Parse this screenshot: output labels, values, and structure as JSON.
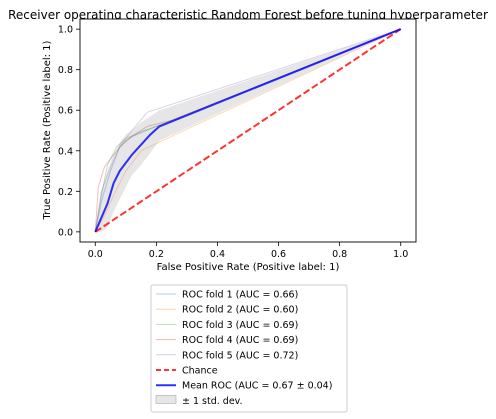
{
  "chart_data": {
    "type": "line",
    "title": "Receiver operating characteristic Random Forest before tuning hyperparameter",
    "xlabel": "False Positive Rate (Positive label: 1)",
    "ylabel": "True Positive Rate (Positive label: 1)",
    "xlim": [
      -0.05,
      1.05
    ],
    "ylim": [
      -0.05,
      1.05
    ],
    "xticks": [
      "0.0",
      "0.2",
      "0.4",
      "0.6",
      "0.8",
      "1.0"
    ],
    "yticks": [
      "0.0",
      "0.2",
      "0.4",
      "0.6",
      "0.8",
      "1.0"
    ],
    "legend_position": "below plot",
    "series": [
      {
        "name": "ROC fold 1 (AUC = 0.66)",
        "color": "#1f77b4",
        "x": [
          0,
          0.02,
          0.05,
          0.08,
          0.12,
          0.2,
          0.3,
          1.0
        ],
        "y": [
          0,
          0.15,
          0.3,
          0.42,
          0.47,
          0.52,
          0.58,
          1.0
        ]
      },
      {
        "name": "ROC fold 2 (AUC = 0.60)",
        "color": "#ff7f0e",
        "x": [
          0,
          0.03,
          0.06,
          0.1,
          0.15,
          0.22,
          1.0
        ],
        "y": [
          0,
          0.08,
          0.18,
          0.3,
          0.4,
          0.45,
          1.0
        ]
      },
      {
        "name": "ROC fold 3 (AUC = 0.69)",
        "color": "#2ca02c",
        "x": [
          0,
          0.02,
          0.04,
          0.07,
          0.1,
          0.16,
          0.22,
          1.0
        ],
        "y": [
          0,
          0.18,
          0.33,
          0.42,
          0.46,
          0.5,
          0.53,
          1.0
        ]
      },
      {
        "name": "ROC fold 4 (AUC = 0.69)",
        "color": "#d62728",
        "x": [
          0,
          0.01,
          0.03,
          0.06,
          0.1,
          0.17,
          0.25,
          1.0
        ],
        "y": [
          0,
          0.22,
          0.32,
          0.38,
          0.45,
          0.52,
          0.55,
          1.0
        ]
      },
      {
        "name": "ROC fold 5 (AUC = 0.72)",
        "color": "#9467bd",
        "x": [
          0,
          0.02,
          0.05,
          0.08,
          0.12,
          0.17,
          1.0
        ],
        "y": [
          0,
          0.2,
          0.32,
          0.42,
          0.5,
          0.59,
          1.0
        ]
      }
    ],
    "chance": {
      "name": "Chance",
      "color": "#ff0000",
      "x": [
        0,
        1
      ],
      "y": [
        0,
        1
      ]
    },
    "mean": {
      "name": "Mean ROC (AUC = 0.67 ± 0.04)",
      "color": "#0000ff",
      "x": [
        0,
        0.02,
        0.04,
        0.06,
        0.08,
        0.1,
        0.12,
        0.15,
        0.18,
        0.21,
        1.0
      ],
      "y": [
        0,
        0.07,
        0.14,
        0.24,
        0.3,
        0.34,
        0.38,
        0.43,
        0.48,
        0.52,
        1.0
      ]
    },
    "band": {
      "name": "± 1 std. dev.",
      "color": "#808080",
      "x": [
        0,
        0.02,
        0.04,
        0.06,
        0.08,
        0.1,
        0.12,
        0.15,
        0.18,
        0.21,
        1.0
      ],
      "upper": [
        0,
        0.2,
        0.3,
        0.38,
        0.44,
        0.48,
        0.5,
        0.54,
        0.57,
        0.6,
        1.0
      ],
      "lower": [
        0,
        0.0,
        0.02,
        0.1,
        0.16,
        0.22,
        0.28,
        0.33,
        0.39,
        0.45,
        1.0
      ]
    }
  }
}
